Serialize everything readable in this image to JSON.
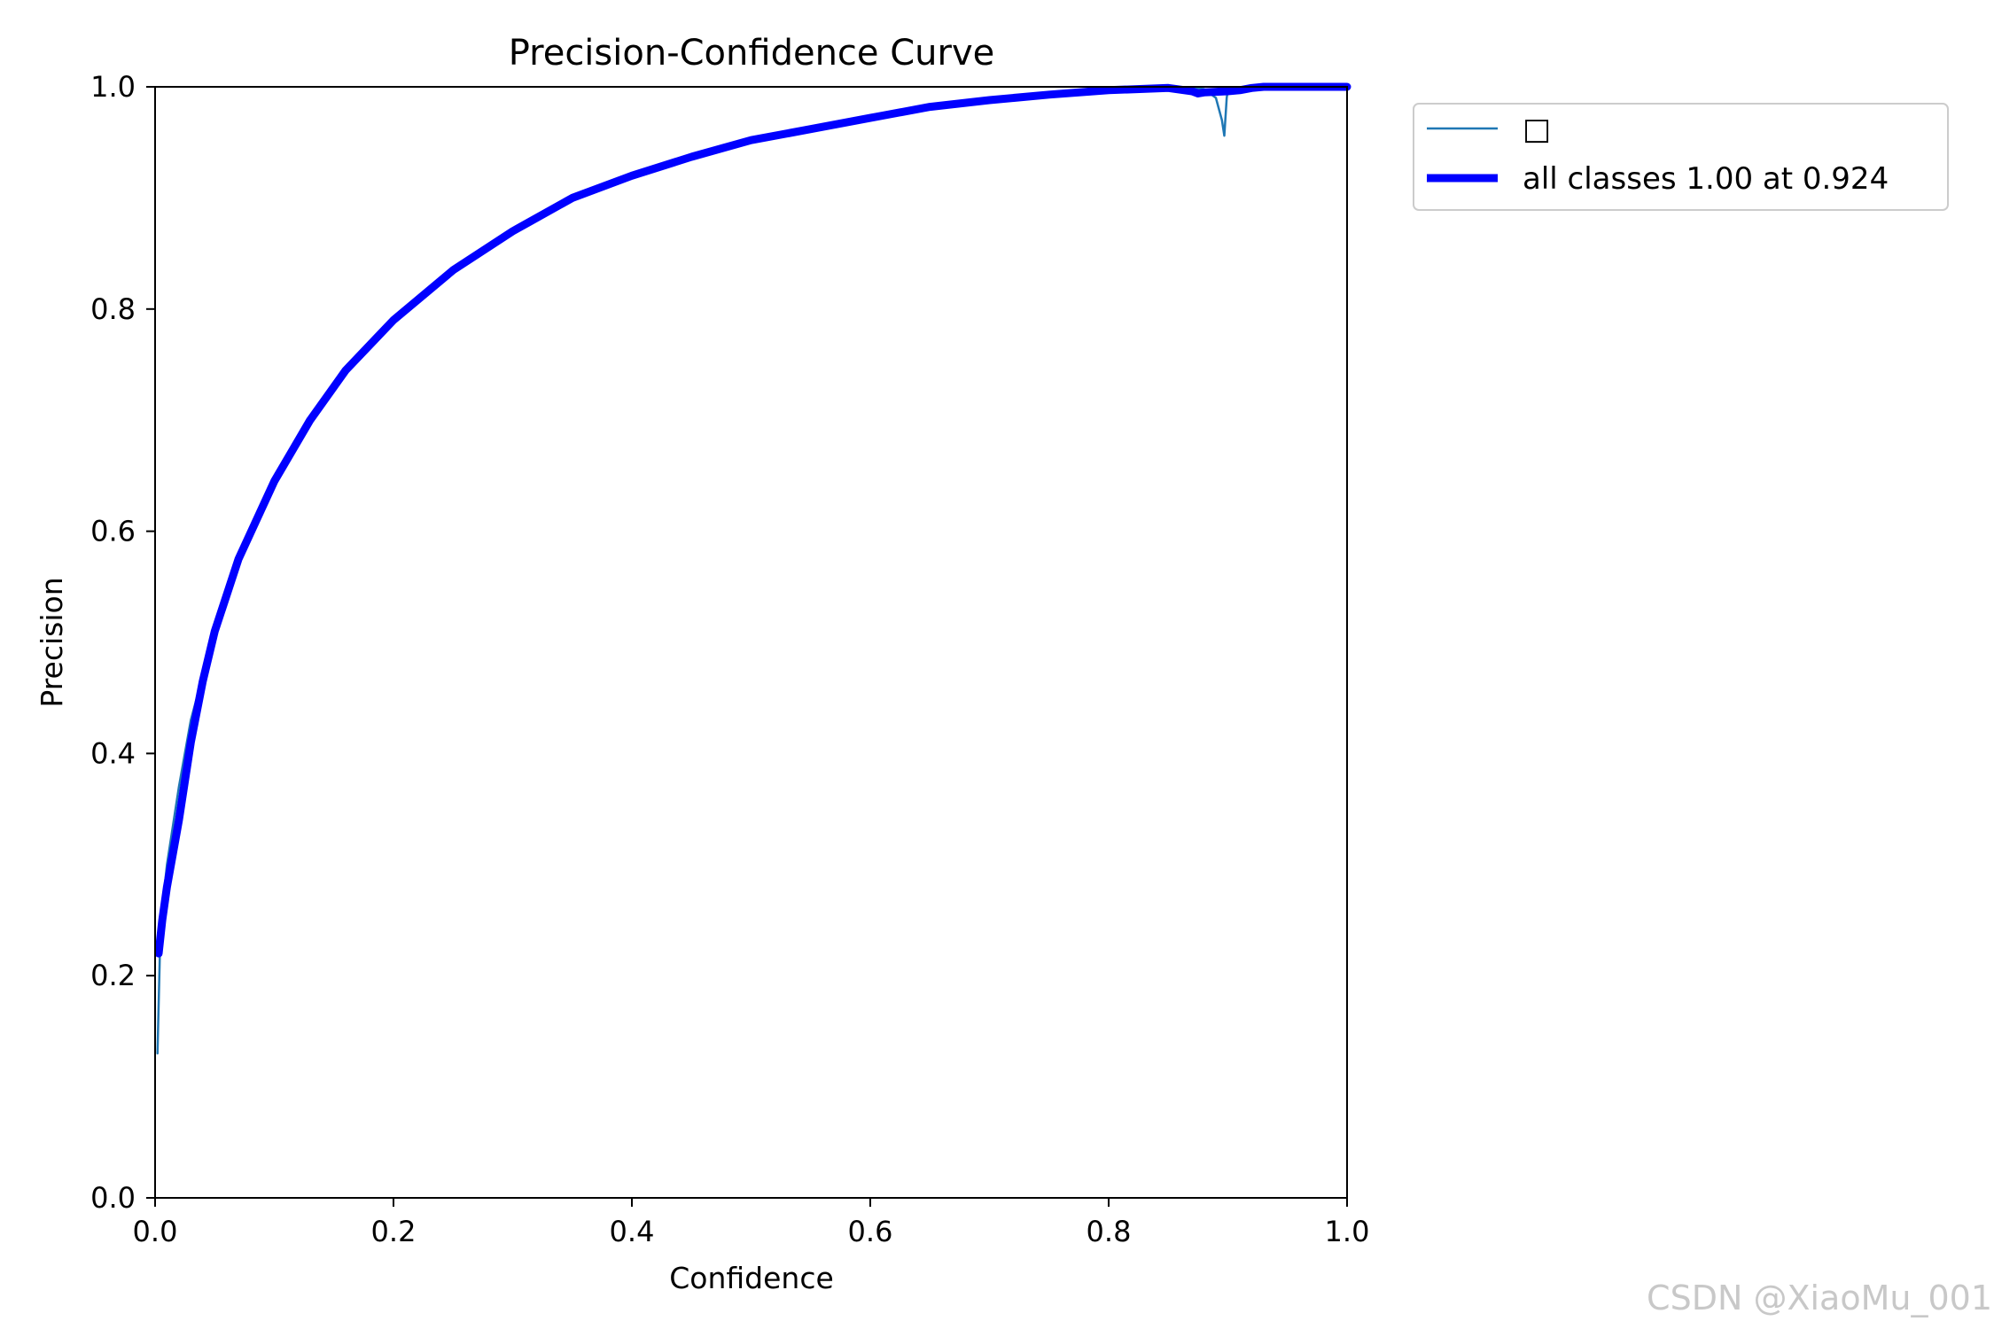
{
  "chart_data": {
    "type": "line",
    "title": "Precision-Confidence Curve",
    "xlabel": "Confidence",
    "ylabel": "Precision",
    "xlim": [
      0.0,
      1.0
    ],
    "ylim": [
      0.0,
      1.0
    ],
    "xticks": [
      "0.0",
      "0.2",
      "0.4",
      "0.6",
      "0.8",
      "1.0"
    ],
    "yticks": [
      "0.0",
      "0.2",
      "0.4",
      "0.6",
      "0.8",
      "1.0"
    ],
    "grid": false,
    "legend_position": "outside-top-right",
    "series": [
      {
        "name": "□",
        "color": "#1f77b4",
        "style": "thin",
        "x": [
          0.002,
          0.004,
          0.006,
          0.01,
          0.02,
          0.03,
          0.05,
          0.07,
          0.1,
          0.13,
          0.16,
          0.2,
          0.25,
          0.3,
          0.35,
          0.4,
          0.45,
          0.5,
          0.55,
          0.6,
          0.65,
          0.7,
          0.75,
          0.8,
          0.85,
          0.87,
          0.88,
          0.89,
          0.895,
          0.897,
          0.899,
          0.9,
          0.91,
          0.92,
          0.93,
          1.0
        ],
        "y": [
          0.13,
          0.22,
          0.26,
          0.3,
          0.37,
          0.43,
          0.51,
          0.575,
          0.645,
          0.7,
          0.745,
          0.79,
          0.835,
          0.87,
          0.9,
          0.92,
          0.937,
          0.952,
          0.962,
          0.972,
          0.982,
          0.988,
          0.993,
          0.997,
          0.999,
          0.999,
          0.998,
          0.99,
          0.97,
          0.956,
          0.99,
          0.997,
          0.998,
          1.0,
          1.0,
          1.0
        ]
      },
      {
        "name": "all classes 1.00 at 0.924",
        "color": "#0000ff",
        "style": "thick",
        "x": [
          0.003,
          0.006,
          0.01,
          0.02,
          0.03,
          0.04,
          0.05,
          0.07,
          0.1,
          0.13,
          0.16,
          0.2,
          0.25,
          0.3,
          0.35,
          0.4,
          0.45,
          0.5,
          0.55,
          0.6,
          0.65,
          0.7,
          0.75,
          0.8,
          0.85,
          0.87,
          0.875,
          0.88,
          0.9,
          0.91,
          0.92,
          0.93,
          1.0
        ],
        "y": [
          0.22,
          0.25,
          0.28,
          0.34,
          0.41,
          0.465,
          0.51,
          0.575,
          0.645,
          0.7,
          0.745,
          0.79,
          0.835,
          0.87,
          0.9,
          0.92,
          0.937,
          0.952,
          0.962,
          0.972,
          0.982,
          0.988,
          0.993,
          0.997,
          0.999,
          0.996,
          0.994,
          0.995,
          0.996,
          0.997,
          0.999,
          1.0,
          1.0
        ]
      }
    ]
  },
  "watermark": "CSDN @XiaoMu_001"
}
